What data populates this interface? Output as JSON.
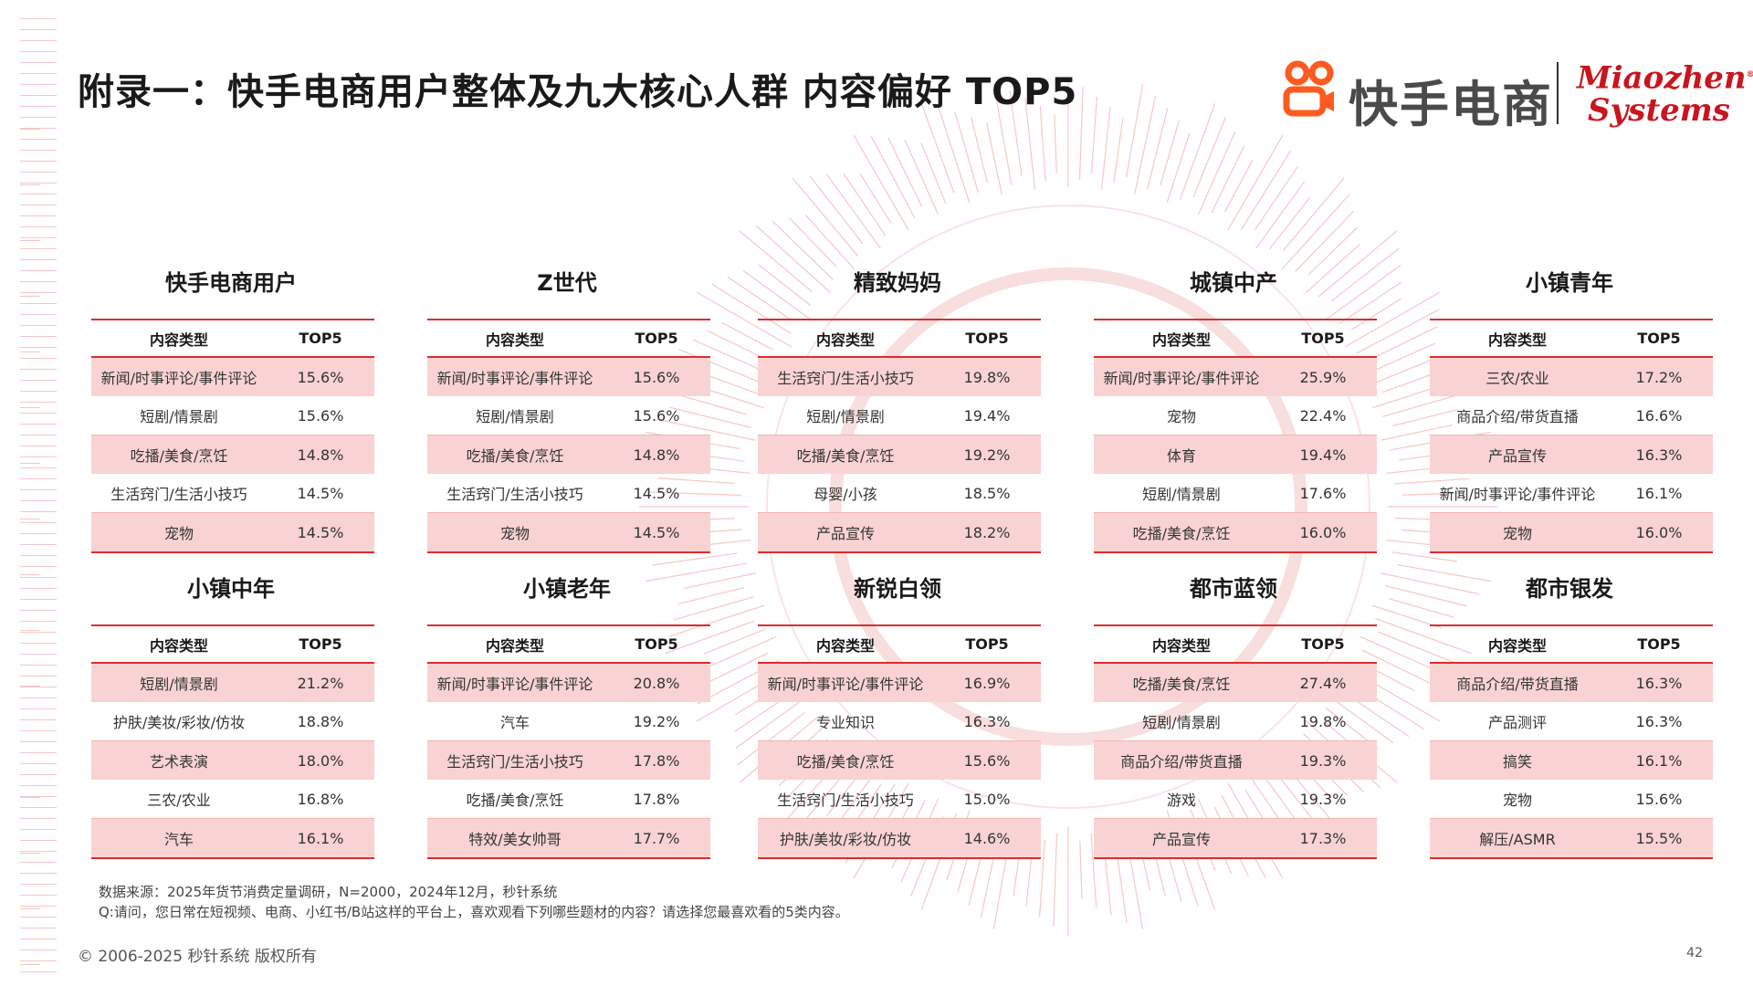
{
  "title": "附录一：快手电商用户整体及九大核心人群 内容偏好 TOP5",
  "logo": {
    "brand_cn": "快手电商",
    "partner_line1": "Miaozhen",
    "partner_line2": "Systems",
    "partner_mark": "®"
  },
  "colors": {
    "accent": "#e02b2b",
    "row_fill": "#f9d3d3",
    "logo_orange": "#ff5a1f",
    "partner_red": "#c9151e"
  },
  "panels": [
    {
      "title": "快手电商用户",
      "col1": "内容类型",
      "col2": "TOP5",
      "rows": [
        {
          "type": "新闻/时事评论/事件评论",
          "value": "15.6%"
        },
        {
          "type": "短剧/情景剧",
          "value": "15.6%"
        },
        {
          "type": "吃播/美食/烹饪",
          "value": "14.8%"
        },
        {
          "type": "生活窍门/生活小技巧",
          "value": "14.5%"
        },
        {
          "type": "宠物",
          "value": "14.5%"
        }
      ]
    },
    {
      "title": "Z世代",
      "col1": "内容类型",
      "col2": "TOP5",
      "rows": [
        {
          "type": "新闻/时事评论/事件评论",
          "value": "15.6%"
        },
        {
          "type": "短剧/情景剧",
          "value": "15.6%"
        },
        {
          "type": "吃播/美食/烹饪",
          "value": "14.8%"
        },
        {
          "type": "生活窍门/生活小技巧",
          "value": "14.5%"
        },
        {
          "type": "宠物",
          "value": "14.5%"
        }
      ]
    },
    {
      "title": "精致妈妈",
      "col1": "内容类型",
      "col2": "TOP5",
      "rows": [
        {
          "type": "生活窍门/生活小技巧",
          "value": "19.8%"
        },
        {
          "type": "短剧/情景剧",
          "value": "19.4%"
        },
        {
          "type": "吃播/美食/烹饪",
          "value": "19.2%"
        },
        {
          "type": "母婴/小孩",
          "value": "18.5%"
        },
        {
          "type": "产品宣传",
          "value": "18.2%"
        }
      ]
    },
    {
      "title": "城镇中产",
      "col1": "内容类型",
      "col2": "TOP5",
      "rows": [
        {
          "type": "新闻/时事评论/事件评论",
          "value": "25.9%"
        },
        {
          "type": "宠物",
          "value": "22.4%"
        },
        {
          "type": "体育",
          "value": "19.4%"
        },
        {
          "type": "短剧/情景剧",
          "value": "17.6%"
        },
        {
          "type": "吃播/美食/烹饪",
          "value": "16.0%"
        }
      ]
    },
    {
      "title": "小镇青年",
      "col1": "内容类型",
      "col2": "TOP5",
      "rows": [
        {
          "type": "三农/农业",
          "value": "17.2%"
        },
        {
          "type": "商品介绍/带货直播",
          "value": "16.6%"
        },
        {
          "type": "产品宣传",
          "value": "16.3%"
        },
        {
          "type": "新闻/时事评论/事件评论",
          "value": "16.1%"
        },
        {
          "type": "宠物",
          "value": "16.0%"
        }
      ]
    },
    {
      "title": "小镇中年",
      "col1": "内容类型",
      "col2": "TOP5",
      "rows": [
        {
          "type": "短剧/情景剧",
          "value": "21.2%"
        },
        {
          "type": "护肤/美妆/彩妆/仿妆",
          "value": "18.8%"
        },
        {
          "type": "艺术表演",
          "value": "18.0%"
        },
        {
          "type": "三农/农业",
          "value": "16.8%"
        },
        {
          "type": "汽车",
          "value": "16.1%"
        }
      ]
    },
    {
      "title": "小镇老年",
      "col1": "内容类型",
      "col2": "TOP5",
      "rows": [
        {
          "type": "新闻/时事评论/事件评论",
          "value": "20.8%"
        },
        {
          "type": "汽车",
          "value": "19.2%"
        },
        {
          "type": "生活窍门/生活小技巧",
          "value": "17.8%"
        },
        {
          "type": "吃播/美食/烹饪",
          "value": "17.8%"
        },
        {
          "type": "特效/美女帅哥",
          "value": "17.7%"
        }
      ]
    },
    {
      "title": "新锐白领",
      "col1": "内容类型",
      "col2": "TOP5",
      "rows": [
        {
          "type": "新闻/时事评论/事件评论",
          "value": "16.9%"
        },
        {
          "type": "专业知识",
          "value": "16.3%"
        },
        {
          "type": "吃播/美食/烹饪",
          "value": "15.6%"
        },
        {
          "type": "生活窍门/生活小技巧",
          "value": "15.0%"
        },
        {
          "type": "护肤/美妆/彩妆/仿妆",
          "value": "14.6%"
        }
      ]
    },
    {
      "title": "都市蓝领",
      "col1": "内容类型",
      "col2": "TOP5",
      "rows": [
        {
          "type": "吃播/美食/烹饪",
          "value": "27.4%"
        },
        {
          "type": "短剧/情景剧",
          "value": "19.8%"
        },
        {
          "type": "商品介绍/带货直播",
          "value": "19.3%"
        },
        {
          "type": "游戏",
          "value": "19.3%"
        },
        {
          "type": "产品宣传",
          "value": "17.3%"
        }
      ]
    },
    {
      "title": "都市银发",
      "col1": "内容类型",
      "col2": "TOP5",
      "rows": [
        {
          "type": "商品介绍/带货直播",
          "value": "16.3%"
        },
        {
          "type": "产品测评",
          "value": "16.3%"
        },
        {
          "type": "搞笑",
          "value": "16.1%"
        },
        {
          "type": "宠物",
          "value": "15.6%"
        },
        {
          "type": "解压/ASMR",
          "value": "15.5%"
        }
      ]
    }
  ],
  "footnote": {
    "line1": "数据来源：2025年货节消费定量调研，N=2000，2024年12月，秒针系统",
    "line2": "Q:请问，您日常在短视频、电商、小红书/B站这样的平台上，喜欢观看下列哪些题材的内容？请选择您最喜欢看的5类内容。"
  },
  "copyright": "© 2006-2025 秒针系统 版权所有",
  "page_number": "42"
}
